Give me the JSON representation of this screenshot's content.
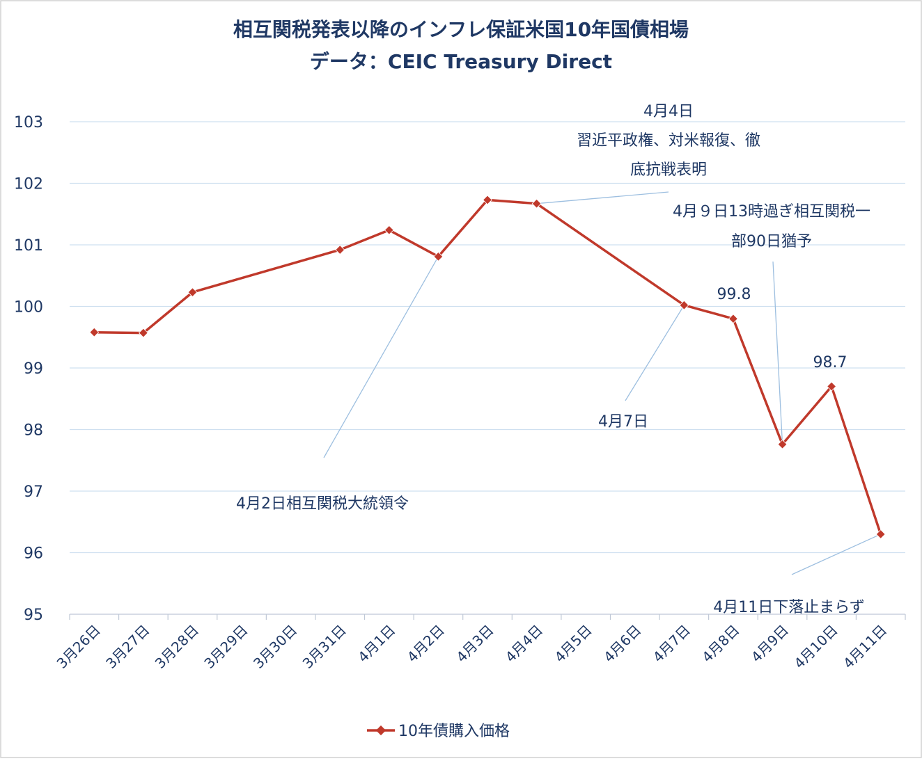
{
  "chart_data": {
    "type": "line",
    "title": "相互関税発表以降のインフレ保証米国10年国債相場",
    "subtitle": "データ：CEIC Treasury Direct",
    "xlabel": "",
    "ylabel": "",
    "ylim": [
      95,
      103
    ],
    "y_ticks": [
      "95",
      "96",
      "97",
      "98",
      "99",
      "100",
      "101",
      "102",
      "103"
    ],
    "categories": [
      "3月26日",
      "3月27日",
      "3月28日",
      "3月29日",
      "3月30日",
      "3月31日",
      "4月1日",
      "4月2日",
      "4月3日",
      "4月4日",
      "4月5日",
      "4月6日",
      "4月7日",
      "4月8日",
      "4月9日",
      "4月10日",
      "4月11日"
    ],
    "grid": true,
    "legend_position": "bottom",
    "series": [
      {
        "name": "10年債購入価格",
        "color": "#c0392b",
        "points": [
          {
            "x": "3月26日",
            "y": 99.58
          },
          {
            "x": "3月27日",
            "y": 99.57
          },
          {
            "x": "3月28日",
            "y": 100.23
          },
          {
            "x": "3月31日",
            "y": 100.92
          },
          {
            "x": "4月1日",
            "y": 101.24
          },
          {
            "x": "4月2日",
            "y": 100.81
          },
          {
            "x": "4月3日",
            "y": 101.73
          },
          {
            "x": "4月4日",
            "y": 101.67
          },
          {
            "x": "4月7日",
            "y": 100.02
          },
          {
            "x": "4月8日",
            "y": 99.8
          },
          {
            "x": "4月9日",
            "y": 97.76
          },
          {
            "x": "4月10日",
            "y": 98.7
          },
          {
            "x": "4月11日",
            "y": 96.3
          }
        ]
      }
    ],
    "annotations": [
      {
        "target": "4月4日",
        "lines": [
          "4月4日",
          "習近平政権、対米報復、徹",
          "底抗戦表明"
        ]
      },
      {
        "target": "4月9日",
        "lines": [
          "4月９日13時過ぎ相互関税一",
          "部90日猶予"
        ]
      },
      {
        "target": "4月2日",
        "lines": [
          "4月2日相互関税大統領令"
        ]
      },
      {
        "target": "4月7日",
        "lines": [
          "4月7日"
        ]
      },
      {
        "target": "4月11日",
        "lines": [
          "4月11日下落止まらず"
        ]
      }
    ],
    "data_labels": [
      {
        "x": "4月8日",
        "text": "99.8"
      },
      {
        "x": "4月10日",
        "text": "98.7"
      }
    ]
  }
}
